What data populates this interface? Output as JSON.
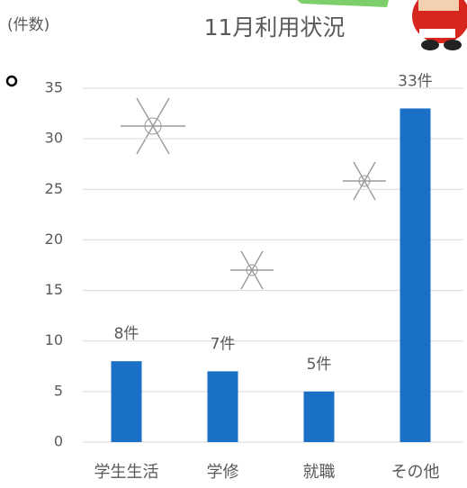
{
  "chart_data": {
    "type": "bar",
    "title": "11月利用状況",
    "y_label": "(件数)",
    "categories": [
      "学生生活",
      "学修",
      "就職",
      "その他"
    ],
    "values": [
      8,
      7,
      5,
      33
    ],
    "value_labels": [
      "8件",
      "7件",
      "5件",
      "33件"
    ],
    "color": "#1a6fc6",
    "ylim": [
      0,
      35
    ],
    "yticks": [
      0,
      5,
      10,
      15,
      20,
      25,
      30,
      35
    ],
    "grid": true
  }
}
